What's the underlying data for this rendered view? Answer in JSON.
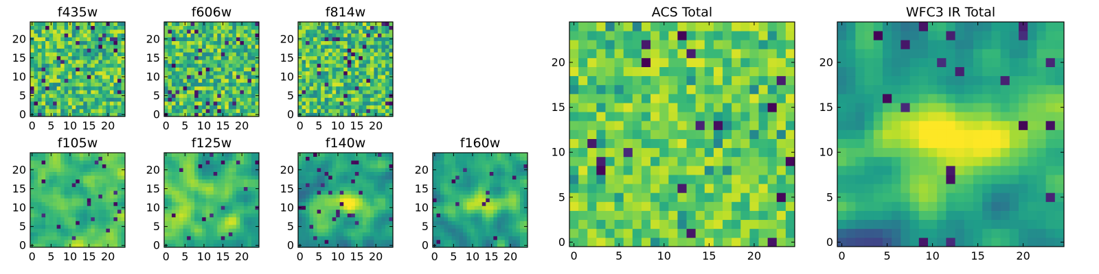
{
  "colormap": "viridis",
  "chart_data": [
    {
      "type": "heatmap",
      "title": "f435w",
      "xlim": [
        0,
        24
      ],
      "ylim": [
        0,
        24
      ],
      "xticks": [
        0,
        5,
        10,
        15,
        20
      ],
      "yticks": [
        0,
        5,
        10,
        15,
        20
      ],
      "pattern": "noise",
      "seed": 11
    },
    {
      "type": "heatmap",
      "title": "f606w",
      "xlim": [
        0,
        24
      ],
      "ylim": [
        0,
        24
      ],
      "xticks": [
        0,
        5,
        10,
        15,
        20
      ],
      "yticks": [
        0,
        5,
        10,
        15,
        20
      ],
      "pattern": "noise",
      "seed": 23
    },
    {
      "type": "heatmap",
      "title": "f814w",
      "xlim": [
        0,
        24
      ],
      "ylim": [
        0,
        24
      ],
      "xticks": [
        0,
        5,
        10,
        15,
        20
      ],
      "yticks": [
        0,
        5,
        10,
        15,
        20
      ],
      "pattern": "noise",
      "seed": 37
    },
    {
      "type": "heatmap",
      "title": "f105w",
      "xlim": [
        0,
        24
      ],
      "ylim": [
        0,
        24
      ],
      "xticks": [
        0,
        5,
        10,
        15,
        20
      ],
      "yticks": [
        0,
        5,
        10,
        15,
        20
      ],
      "pattern": "smooth",
      "seed": 41
    },
    {
      "type": "heatmap",
      "title": "f125w",
      "xlim": [
        0,
        24
      ],
      "ylim": [
        0,
        24
      ],
      "xticks": [
        0,
        5,
        10,
        15,
        20
      ],
      "yticks": [
        0,
        5,
        10,
        15,
        20
      ],
      "pattern": "smooth",
      "seed": 53
    },
    {
      "type": "heatmap",
      "title": "f140w",
      "xlim": [
        0,
        24
      ],
      "ylim": [
        0,
        24
      ],
      "xticks": [
        0,
        5,
        10,
        15,
        20
      ],
      "yticks": [
        0,
        5,
        10,
        15,
        20
      ],
      "pattern": "band",
      "seed": 67
    },
    {
      "type": "heatmap",
      "title": "f160w",
      "xlim": [
        0,
        24
      ],
      "ylim": [
        0,
        24
      ],
      "xticks": [
        0,
        5,
        10,
        15,
        20
      ],
      "yticks": [
        0,
        5,
        10,
        15,
        20
      ],
      "pattern": "band",
      "seed": 79
    },
    {
      "type": "heatmap",
      "title": "ACS Total",
      "xlim": [
        0,
        24
      ],
      "ylim": [
        0,
        24
      ],
      "xticks": [
        0,
        5,
        10,
        15,
        20
      ],
      "yticks": [
        0,
        5,
        10,
        15,
        20
      ],
      "pattern": "noise-soft",
      "seed": 89
    },
    {
      "type": "heatmap",
      "title": "WFC3 IR Total",
      "xlim": [
        0,
        24
      ],
      "ylim": [
        0,
        24
      ],
      "xticks": [
        0,
        5,
        10,
        15,
        20
      ],
      "yticks": [
        0,
        5,
        10,
        15,
        20
      ],
      "pattern": "band-strong",
      "seed": 97
    }
  ]
}
